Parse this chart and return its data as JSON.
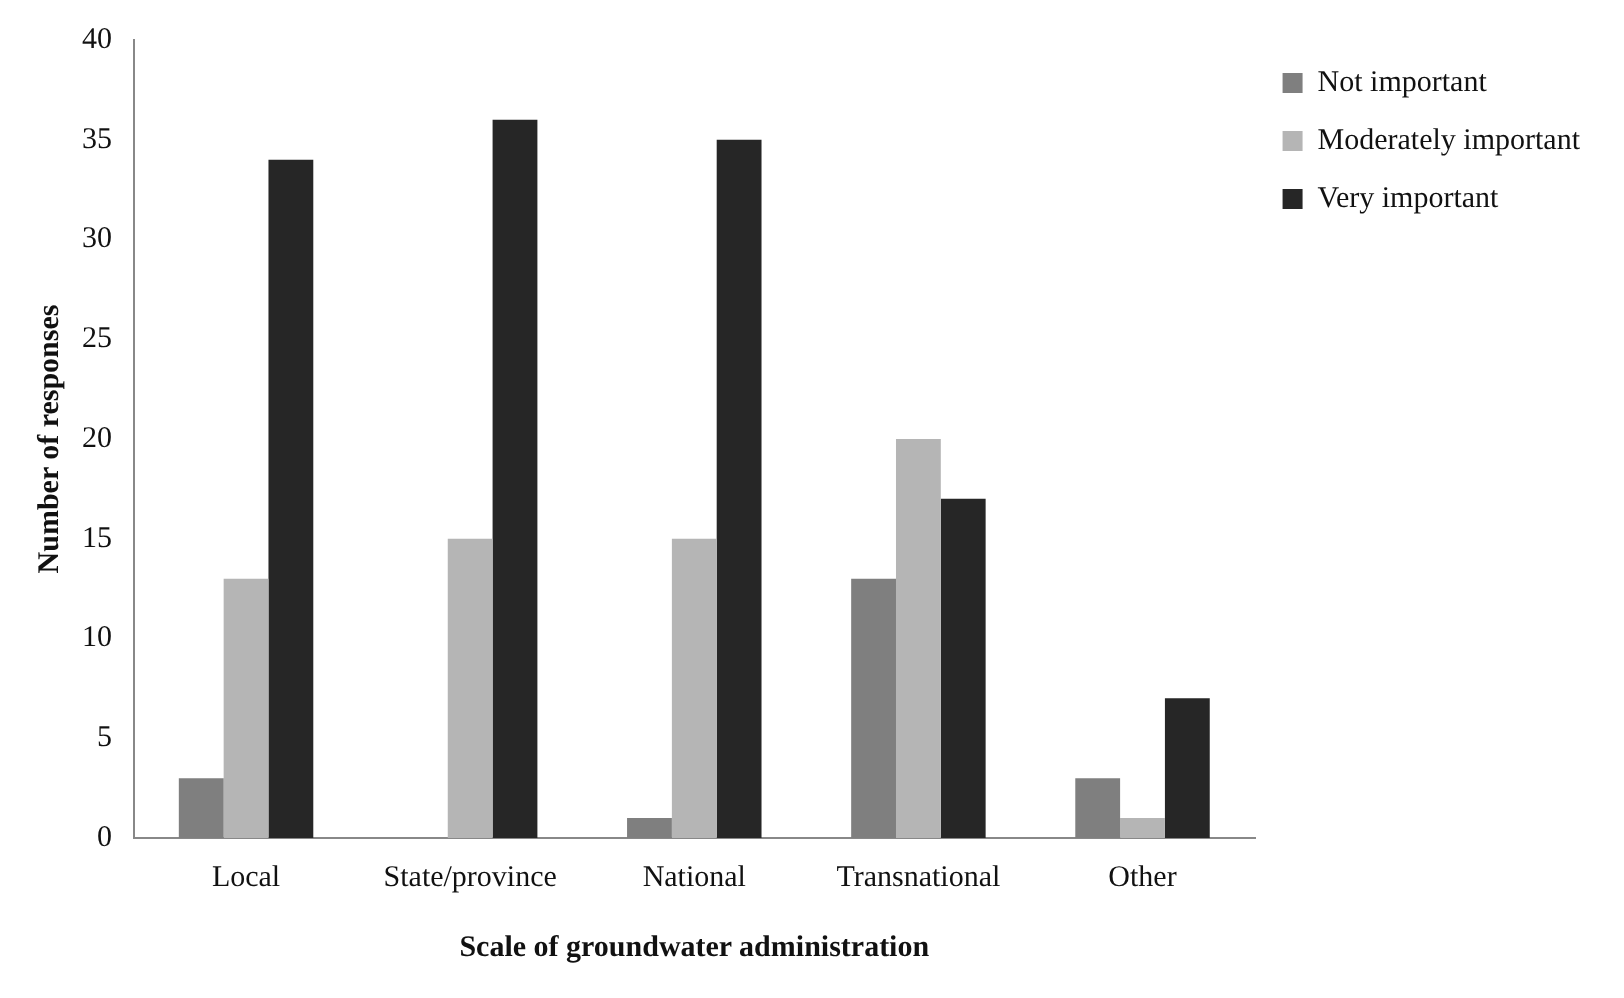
{
  "chart_data": {
    "type": "bar",
    "xlabel": "Scale of groundwater administration",
    "ylabel": "Number of responses",
    "categories": [
      "Local",
      "State/province",
      "National",
      "Transnational",
      "Other"
    ],
    "series": [
      {
        "name": "Not important",
        "color": "#7f7f7f",
        "values": [
          3,
          0,
          1,
          13,
          3
        ]
      },
      {
        "name": "Moderately important",
        "color": "#b5b5b5",
        "values": [
          13,
          15,
          15,
          20,
          1
        ]
      },
      {
        "name": "Very important",
        "color": "#262626",
        "values": [
          34,
          36,
          35,
          17,
          7
        ]
      }
    ],
    "ylim": [
      0,
      40
    ],
    "yticks": [
      0,
      5,
      10,
      15,
      20,
      25,
      30,
      35,
      40
    ],
    "grid": false,
    "legend": "top right"
  }
}
